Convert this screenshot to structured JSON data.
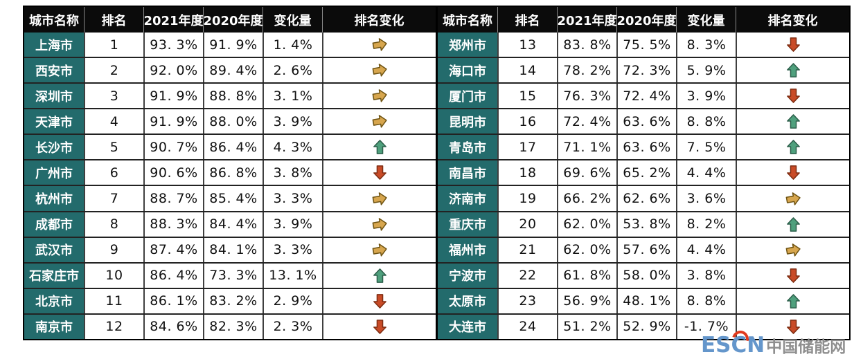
{
  "columns": [
    "城市名称",
    "排名",
    "2021年度",
    "2020年度",
    "变化量",
    "排名变化"
  ],
  "tables": [
    {
      "name": "left",
      "rows": [
        {
          "city": "上海市",
          "rank": "1",
          "y2021": "93. 3%",
          "y2020": "91. 9%",
          "change": "1. 4%",
          "trend": "right"
        },
        {
          "city": "西安市",
          "rank": "2",
          "y2021": "92. 0%",
          "y2020": "89. 4%",
          "change": "2. 6%",
          "trend": "right"
        },
        {
          "city": "深圳市",
          "rank": "3",
          "y2021": "91. 9%",
          "y2020": "88. 8%",
          "change": "3. 1%",
          "trend": "right"
        },
        {
          "city": "天津市",
          "rank": "4",
          "y2021": "91. 9%",
          "y2020": "88. 0%",
          "change": "3. 9%",
          "trend": "right"
        },
        {
          "city": "长沙市",
          "rank": "5",
          "y2021": "90. 7%",
          "y2020": "86. 4%",
          "change": "4. 3%",
          "trend": "up"
        },
        {
          "city": "广州市",
          "rank": "6",
          "y2021": "90. 6%",
          "y2020": "86. 8%",
          "change": "3. 8%",
          "trend": "down"
        },
        {
          "city": "杭州市",
          "rank": "7",
          "y2021": "88. 7%",
          "y2020": "85. 4%",
          "change": "3. 3%",
          "trend": "right"
        },
        {
          "city": "成都市",
          "rank": "8",
          "y2021": "88. 3%",
          "y2020": "84. 4%",
          "change": "3. 9%",
          "trend": "right"
        },
        {
          "city": "武汉市",
          "rank": "9",
          "y2021": "87. 4%",
          "y2020": "84. 1%",
          "change": "3. 3%",
          "trend": "right"
        },
        {
          "city": "石家庄市",
          "rank": "10",
          "y2021": "86. 4%",
          "y2020": "73. 3%",
          "change": "13. 1%",
          "trend": "up"
        },
        {
          "city": "北京市",
          "rank": "11",
          "y2021": "86. 1%",
          "y2020": "83. 2%",
          "change": "2. 9%",
          "trend": "down"
        },
        {
          "city": "南京市",
          "rank": "12",
          "y2021": "84. 6%",
          "y2020": "82. 3%",
          "change": "2. 3%",
          "trend": "down"
        }
      ]
    },
    {
      "name": "right",
      "rows": [
        {
          "city": "郑州市",
          "rank": "13",
          "y2021": "83. 8%",
          "y2020": "75. 5%",
          "change": "8. 3%",
          "trend": "down"
        },
        {
          "city": "海口市",
          "rank": "14",
          "y2021": "78. 2%",
          "y2020": "72. 3%",
          "change": "5. 9%",
          "trend": "up"
        },
        {
          "city": "厦门市",
          "rank": "15",
          "y2021": "76. 3%",
          "y2020": "72. 4%",
          "change": "3. 9%",
          "trend": "down"
        },
        {
          "city": "昆明市",
          "rank": "16",
          "y2021": "72. 4%",
          "y2020": "63. 6%",
          "change": "8. 8%",
          "trend": "up"
        },
        {
          "city": "青岛市",
          "rank": "17",
          "y2021": "71. 1%",
          "y2020": "63. 6%",
          "change": "7. 5%",
          "trend": "up"
        },
        {
          "city": "南昌市",
          "rank": "18",
          "y2021": "69. 6%",
          "y2020": "65. 2%",
          "change": "4. 4%",
          "trend": "down"
        },
        {
          "city": "济南市",
          "rank": "19",
          "y2021": "66. 2%",
          "y2020": "62. 6%",
          "change": "3. 6%",
          "trend": "right"
        },
        {
          "city": "重庆市",
          "rank": "20",
          "y2021": "62. 0%",
          "y2020": "53. 8%",
          "change": "8. 2%",
          "trend": "up"
        },
        {
          "city": "福州市",
          "rank": "21",
          "y2021": "62. 0%",
          "y2020": "57. 6%",
          "change": "4. 4%",
          "trend": "right"
        },
        {
          "city": "宁波市",
          "rank": "22",
          "y2021": "61. 8%",
          "y2020": "58. 0%",
          "change": "3. 8%",
          "trend": "down"
        },
        {
          "city": "太原市",
          "rank": "23",
          "y2021": "56. 9%",
          "y2020": "48. 1%",
          "change": "8. 8%",
          "trend": "up"
        },
        {
          "city": "大连市",
          "rank": "24",
          "y2021": "51. 2%",
          "y2020": "52. 9%",
          "change": "-1. 7%",
          "trend": "down"
        }
      ]
    }
  ],
  "chart_data": {
    "type": "table",
    "columns": [
      "城市名称",
      "排名",
      "2021年度",
      "2020年度",
      "变化量",
      "排名变化"
    ],
    "rows": [
      [
        "上海市",
        1,
        93.3,
        91.9,
        1.4,
        "steady"
      ],
      [
        "西安市",
        2,
        92.0,
        89.4,
        2.6,
        "steady"
      ],
      [
        "深圳市",
        3,
        91.9,
        88.8,
        3.1,
        "steady"
      ],
      [
        "天津市",
        4,
        91.9,
        88.0,
        3.9,
        "steady"
      ],
      [
        "长沙市",
        5,
        90.7,
        86.4,
        4.3,
        "up"
      ],
      [
        "广州市",
        6,
        90.6,
        86.8,
        3.8,
        "down"
      ],
      [
        "杭州市",
        7,
        88.7,
        85.4,
        3.3,
        "steady"
      ],
      [
        "成都市",
        8,
        88.3,
        84.4,
        3.9,
        "steady"
      ],
      [
        "武汉市",
        9,
        87.4,
        84.1,
        3.3,
        "steady"
      ],
      [
        "石家庄市",
        10,
        86.4,
        73.3,
        13.1,
        "up"
      ],
      [
        "北京市",
        11,
        86.1,
        83.2,
        2.9,
        "down"
      ],
      [
        "南京市",
        12,
        84.6,
        82.3,
        2.3,
        "down"
      ],
      [
        "郑州市",
        13,
        83.8,
        75.5,
        8.3,
        "down"
      ],
      [
        "海口市",
        14,
        78.2,
        72.3,
        5.9,
        "up"
      ],
      [
        "厦门市",
        15,
        76.3,
        72.4,
        3.9,
        "down"
      ],
      [
        "昆明市",
        16,
        72.4,
        63.6,
        8.8,
        "up"
      ],
      [
        "青岛市",
        17,
        71.1,
        63.6,
        7.5,
        "up"
      ],
      [
        "南昌市",
        18,
        69.6,
        65.2,
        4.4,
        "down"
      ],
      [
        "济南市",
        19,
        66.2,
        62.6,
        3.6,
        "steady"
      ],
      [
        "重庆市",
        20,
        62.0,
        53.8,
        8.2,
        "up"
      ],
      [
        "福州市",
        21,
        62.0,
        57.6,
        4.4,
        "steady"
      ],
      [
        "宁波市",
        22,
        61.8,
        58.0,
        3.8,
        "down"
      ],
      [
        "太原市",
        23,
        56.9,
        48.1,
        8.8,
        "up"
      ],
      [
        "大连市",
        24,
        51.2,
        52.9,
        -1.7,
        "down"
      ]
    ],
    "legend_note": {
      "up": "排名上升",
      "down": "排名下降",
      "steady": "排名不变"
    }
  },
  "colors": {
    "header_bg": "#0b0b0b",
    "header_text": "#ffffff",
    "city_cell_bg": "#236b6c",
    "city_cell_text": "#ffffff",
    "arrow_up": "#4fa07d",
    "arrow_down": "#c94b27",
    "arrow_right": "#d7a64e",
    "watermark_logo": "#6496cb",
    "watermark_site": "#8f8f8f"
  },
  "watermark": {
    "logo": "ESCN",
    "site_name": "中国储能网"
  }
}
